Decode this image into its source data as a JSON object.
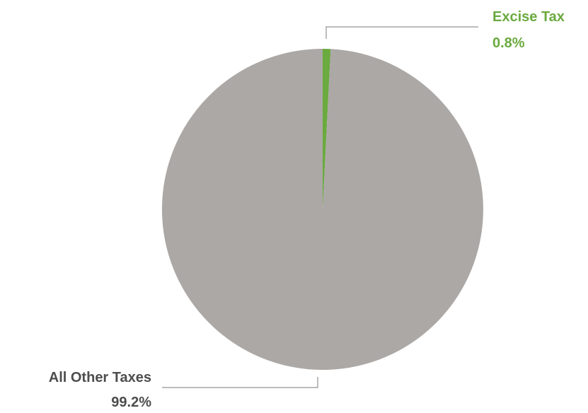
{
  "chart_data": {
    "type": "pie",
    "title": "",
    "slices": [
      {
        "name": "Excise Tax",
        "value": 0.8,
        "label": "0.8%",
        "color": "#6aaa3f"
      },
      {
        "name": "All Other Taxes",
        "value": 99.2,
        "label": "99.2%",
        "color": "#aca8a6"
      }
    ],
    "label_colors": {
      "Excise Tax": "#6aaa3f",
      "All Other Taxes": "#4d4d4d"
    },
    "leader_line_color": "#a6a6a6",
    "start_angle_deg": 0,
    "direction": "clockwise"
  }
}
